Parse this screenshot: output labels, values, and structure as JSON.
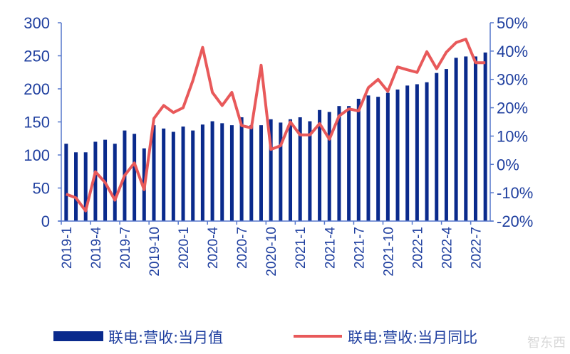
{
  "chart_data": {
    "type": "bar+line",
    "x": [
      "2019-1",
      "2019-2",
      "2019-3",
      "2019-4",
      "2019-5",
      "2019-6",
      "2019-7",
      "2019-8",
      "2019-9",
      "2019-10",
      "2019-11",
      "2019-12",
      "2020-1",
      "2020-2",
      "2020-3",
      "2020-4",
      "2020-5",
      "2020-6",
      "2020-7",
      "2020-8",
      "2020-9",
      "2020-10",
      "2020-11",
      "2020-12",
      "2021-1",
      "2021-2",
      "2021-3",
      "2021-4",
      "2021-5",
      "2021-6",
      "2021-7",
      "2021-8",
      "2021-9",
      "2021-10",
      "2021-11",
      "2021-12",
      "2022-1",
      "2022-2",
      "2022-3",
      "2022-4",
      "2022-5",
      "2022-6",
      "2022-7",
      "2022-8"
    ],
    "x_tick_labels": [
      "2019-1",
      "2019-4",
      "2019-7",
      "2019-10",
      "2020-1",
      "2020-4",
      "2020-7",
      "2020-10",
      "2021-1",
      "2021-4",
      "2021-7",
      "2021-10",
      "2022-1",
      "2022-4",
      "2022-7"
    ],
    "series": [
      {
        "name": "联电:营收:当月值",
        "type": "bar",
        "axis": "left",
        "color": "#0a2a8c",
        "values": [
          117,
          104,
          104,
          120,
          123,
          117,
          137,
          132,
          110,
          145,
          140,
          135,
          143,
          137,
          146,
          151,
          148,
          145,
          157,
          145,
          145,
          154,
          149,
          154,
          157,
          151,
          168,
          165,
          174,
          174,
          185,
          190,
          188,
          194,
          199,
          205,
          207,
          210,
          224,
          230,
          247,
          249,
          249,
          255
        ]
      },
      {
        "name": "联电:营收:当月同比",
        "type": "line",
        "axis": "right",
        "unit": "%",
        "color": "#e8595a",
        "values": [
          -10.5,
          -11.8,
          -16.4,
          -2.6,
          -6.4,
          -12.6,
          -3.9,
          0.5,
          -8.9,
          16.2,
          20.8,
          18.3,
          20.0,
          29.6,
          41.3,
          25.4,
          20.8,
          25.4,
          13.7,
          12.9,
          35.0,
          5.3,
          6.6,
          15.0,
          10.4,
          10.4,
          14.4,
          8.9,
          17.1,
          19.6,
          18.9,
          27.1,
          30.0,
          25.8,
          34.4,
          33.4,
          32.5,
          39.8,
          33.8,
          39.6,
          43.0,
          44.2,
          35.9,
          35.9
        ]
      }
    ],
    "y_left": {
      "ylim": [
        0,
        300
      ],
      "ticks": [
        "0",
        "50",
        "100",
        "150",
        "200",
        "250",
        "300"
      ]
    },
    "y_right": {
      "ylim": [
        -20,
        50
      ],
      "ticks": [
        "-20%",
        "-10%",
        "0%",
        "10%",
        "20%",
        "30%",
        "40%",
        "50%"
      ]
    },
    "grid": false,
    "legend_position": "bottom"
  },
  "watermark": "智东西"
}
